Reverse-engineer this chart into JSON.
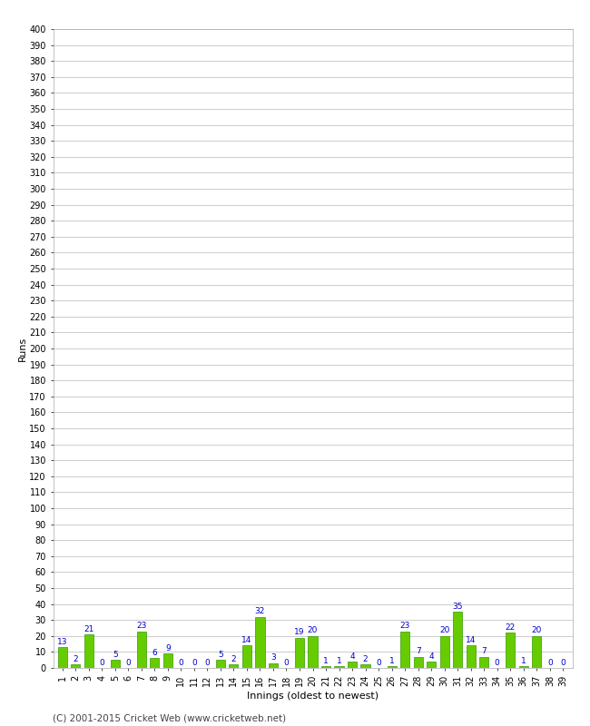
{
  "innings": [
    1,
    2,
    3,
    4,
    5,
    6,
    7,
    8,
    9,
    10,
    11,
    12,
    13,
    14,
    15,
    16,
    17,
    18,
    19,
    20,
    21,
    22,
    23,
    24,
    25,
    26,
    27,
    28,
    29,
    30,
    31,
    32,
    33,
    34,
    35,
    36,
    37,
    38,
    39
  ],
  "runs": [
    13,
    2,
    21,
    0,
    5,
    0,
    23,
    6,
    9,
    0,
    0,
    0,
    5,
    2,
    14,
    32,
    3,
    0,
    19,
    20,
    1,
    1,
    4,
    2,
    0,
    1,
    23,
    7,
    4,
    20,
    35,
    14,
    7,
    0,
    22,
    1,
    20,
    0,
    0
  ],
  "bar_color": "#66cc00",
  "bar_edge_color": "#339900",
  "label_color": "#0000cc",
  "xlabel": "Innings (oldest to newest)",
  "ylabel": "Runs",
  "ylim": [
    0,
    400
  ],
  "yticks": [
    0,
    10,
    20,
    30,
    40,
    50,
    60,
    70,
    80,
    90,
    100,
    110,
    120,
    130,
    140,
    150,
    160,
    170,
    180,
    190,
    200,
    210,
    220,
    230,
    240,
    250,
    260,
    270,
    280,
    290,
    300,
    310,
    320,
    330,
    340,
    350,
    360,
    370,
    380,
    390,
    400
  ],
  "footer": "(C) 2001-2015 Cricket Web (www.cricketweb.net)",
  "background_color": "#ffffff",
  "grid_color": "#cccccc",
  "axis_fontsize": 8,
  "label_fontsize": 6.5,
  "tick_label_fontsize": 7,
  "footer_fontsize": 7.5
}
